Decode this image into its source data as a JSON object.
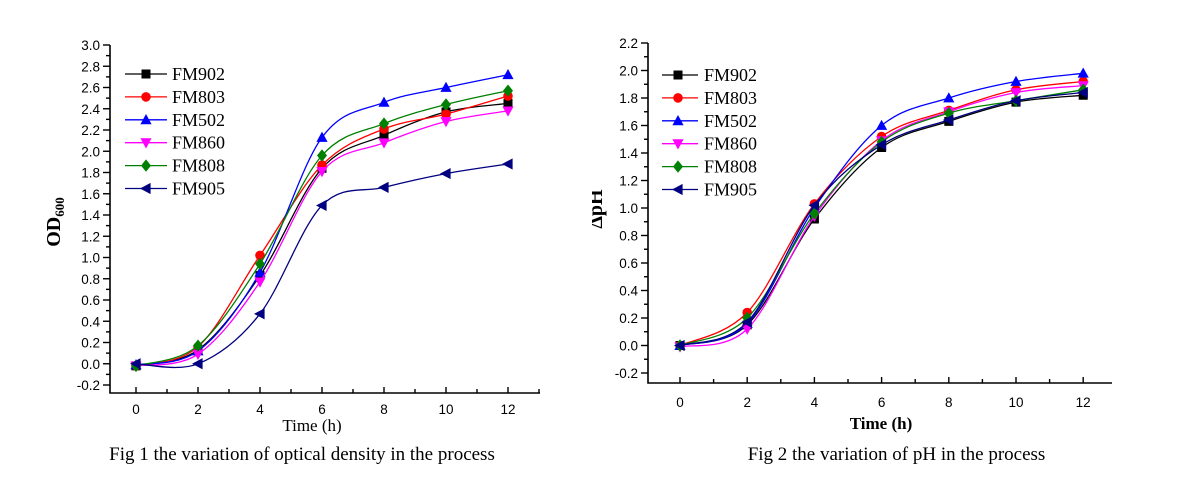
{
  "page": {
    "background_color": "#ffffff",
    "axis_color": "#000000"
  },
  "chart_data": [
    {
      "type": "line",
      "caption": "Fig 1 the variation of optical density in the process",
      "xlabel": "Time (h)",
      "xlabel_bold": false,
      "ylabel": "OD",
      "ylabel_subscript": "600",
      "x": [
        0,
        2,
        4,
        6,
        8,
        10,
        12
      ],
      "xticks": [
        0,
        2,
        4,
        6,
        8,
        10,
        12
      ],
      "yticks": [
        3.0,
        2.8,
        2.6,
        2.4,
        2.2,
        2.0,
        1.8,
        1.6,
        1.4,
        1.2,
        1.0,
        0.8,
        0.6,
        0.4,
        0.2,
        0.0,
        -0.2
      ],
      "xlim": [
        -1,
        13
      ],
      "ylim": [
        -0.2,
        3.0
      ],
      "grid": false,
      "legend_position": "upper-left-inside",
      "series": [
        {
          "name": "FM902",
          "color": "#000000",
          "marker": "square",
          "values": [
            -0.02,
            0.13,
            0.83,
            1.84,
            2.15,
            2.37,
            2.45
          ]
        },
        {
          "name": "FM803",
          "color": "#ff0000",
          "marker": "circle",
          "values": [
            -0.02,
            0.16,
            1.02,
            1.87,
            2.21,
            2.35,
            2.52
          ]
        },
        {
          "name": "FM502",
          "color": "#0000ff",
          "marker": "triangle-up",
          "values": [
            -0.01,
            0.12,
            0.86,
            2.13,
            2.46,
            2.6,
            2.72
          ]
        },
        {
          "name": "FM860",
          "color": "#ff00ff",
          "marker": "triangle-down",
          "values": [
            -0.02,
            0.09,
            0.77,
            1.81,
            2.08,
            2.28,
            2.38
          ]
        },
        {
          "name": "FM808",
          "color": "#008000",
          "marker": "diamond",
          "values": [
            -0.02,
            0.17,
            0.94,
            1.96,
            2.26,
            2.44,
            2.57
          ]
        },
        {
          "name": "FM905",
          "color": "#000080",
          "marker": "triangle-left",
          "values": [
            0.0,
            0.0,
            0.47,
            1.49,
            1.66,
            1.79,
            1.88
          ]
        }
      ]
    },
    {
      "type": "line",
      "caption": "Fig 2 the variation of pH in the process",
      "xlabel": "Time (h)",
      "xlabel_bold": true,
      "ylabel": "ΔpH",
      "ylabel_subscript": "",
      "x": [
        0,
        2,
        4,
        6,
        8,
        10,
        12
      ],
      "xticks": [
        0,
        2,
        4,
        6,
        8,
        10,
        12
      ],
      "yticks": [
        2.2,
        2.0,
        1.8,
        1.6,
        1.4,
        1.2,
        1.0,
        0.8,
        0.6,
        0.4,
        0.2,
        0.0,
        -0.2
      ],
      "xlim": [
        -1,
        13
      ],
      "ylim": [
        -0.2,
        2.2
      ],
      "grid": false,
      "legend_position": "upper-left-inside",
      "series": [
        {
          "name": "FM902",
          "color": "#000000",
          "marker": "square",
          "values": [
            0.0,
            0.15,
            0.92,
            1.44,
            1.63,
            1.77,
            1.82
          ]
        },
        {
          "name": "FM803",
          "color": "#ff0000",
          "marker": "circle",
          "values": [
            0.0,
            0.24,
            1.03,
            1.52,
            1.71,
            1.86,
            1.92
          ]
        },
        {
          "name": "FM502",
          "color": "#0000ff",
          "marker": "triangle-up",
          "values": [
            0.0,
            0.16,
            1.0,
            1.6,
            1.8,
            1.92,
            1.98
          ]
        },
        {
          "name": "FM860",
          "color": "#ff00ff",
          "marker": "triangle-down",
          "values": [
            -0.01,
            0.12,
            0.94,
            1.49,
            1.7,
            1.84,
            1.89
          ]
        },
        {
          "name": "FM808",
          "color": "#008000",
          "marker": "diamond",
          "values": [
            0.0,
            0.2,
            0.96,
            1.48,
            1.69,
            1.78,
            1.86
          ]
        },
        {
          "name": "FM905",
          "color": "#000080",
          "marker": "triangle-left",
          "values": [
            0.0,
            0.17,
            1.02,
            1.46,
            1.64,
            1.78,
            1.84
          ]
        }
      ]
    }
  ]
}
